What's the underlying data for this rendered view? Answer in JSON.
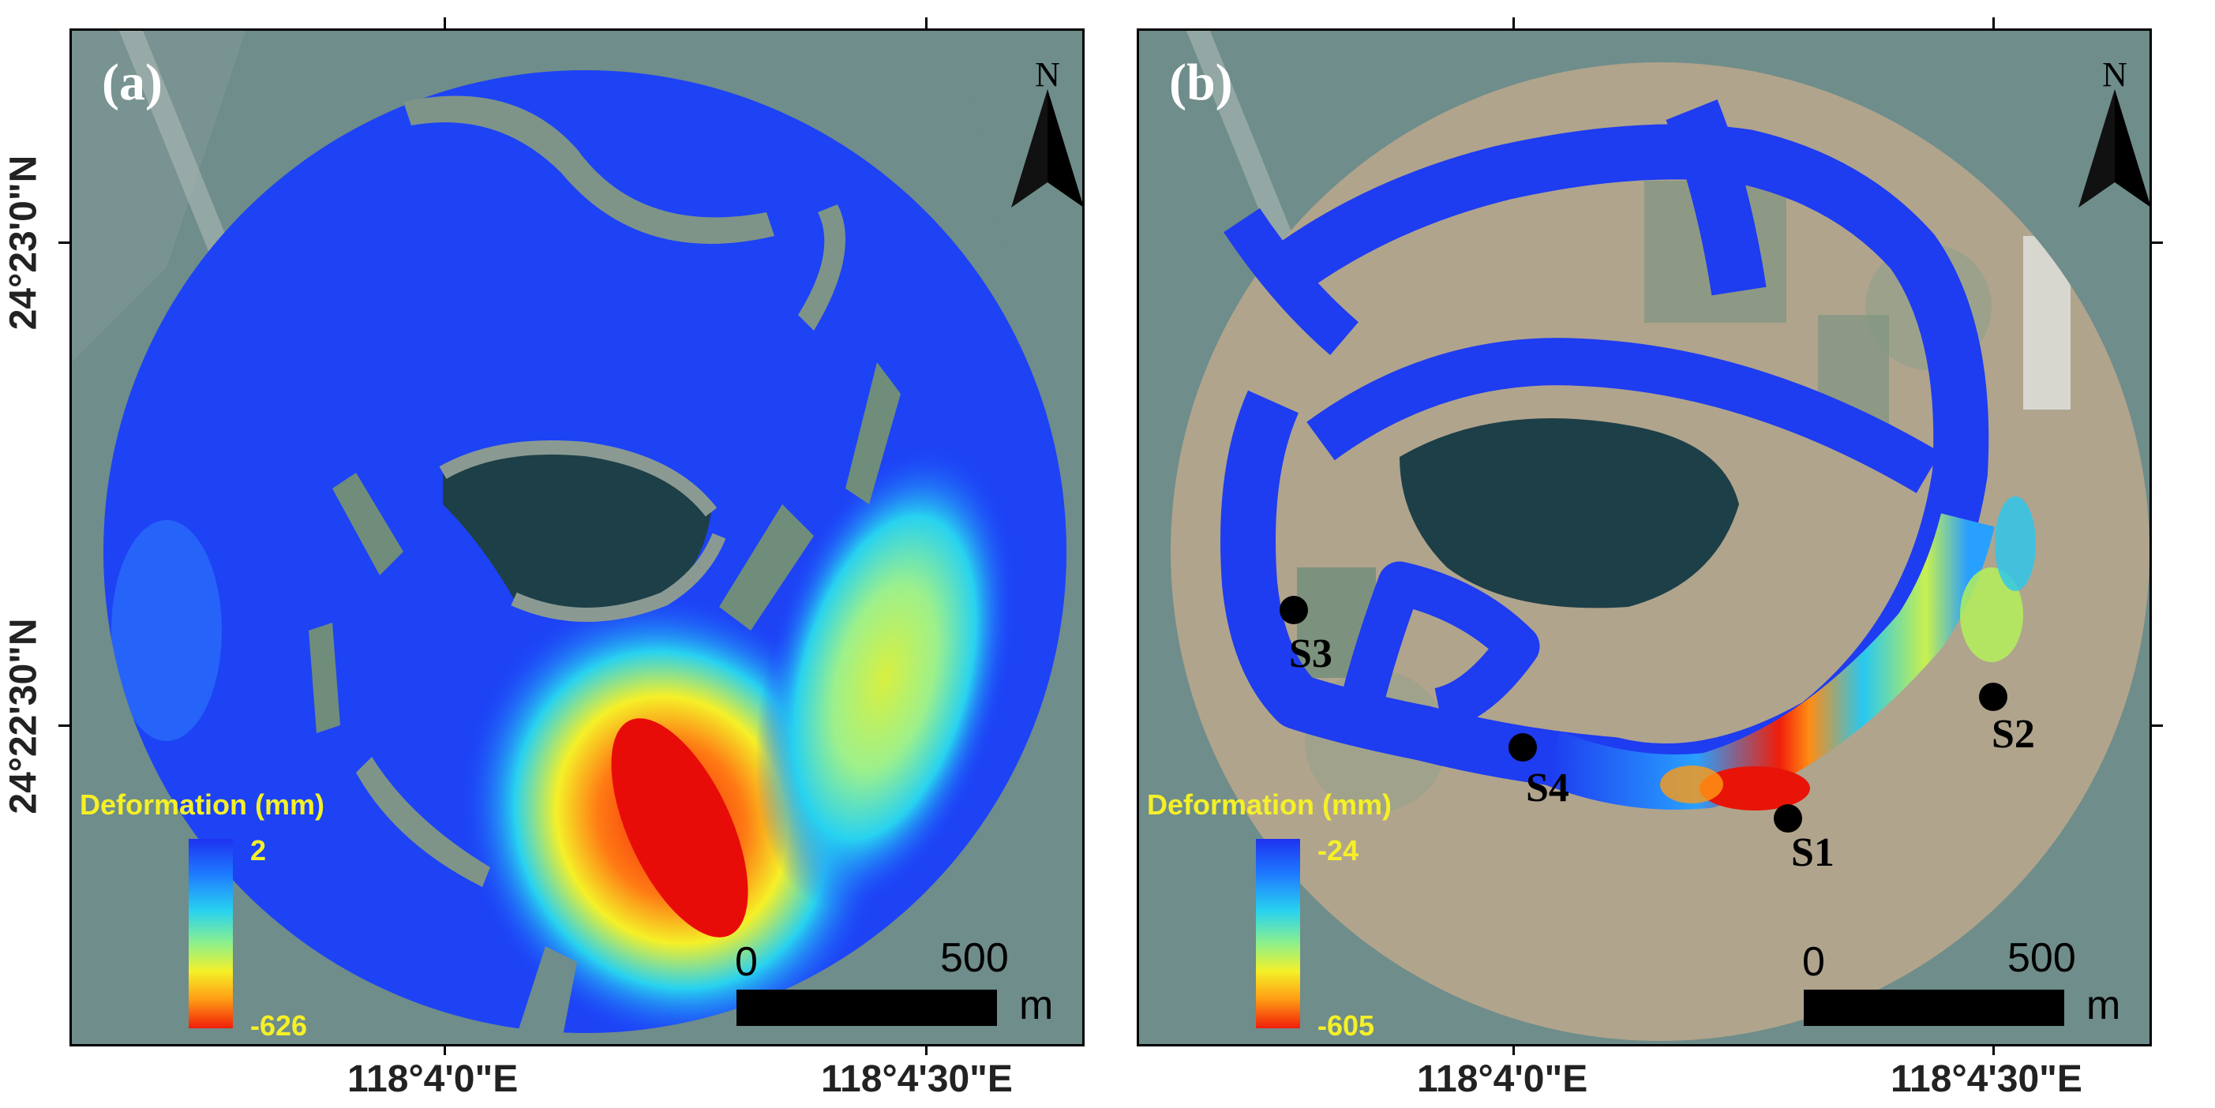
{
  "panels": {
    "a": {
      "label": "(a)",
      "north": "N",
      "legend": {
        "title": "Deformation (mm)",
        "max": "2",
        "min": "-626"
      },
      "scale": {
        "start": "0",
        "end": "500",
        "unit": "m"
      }
    },
    "b": {
      "label": "(b)",
      "north": "N",
      "legend": {
        "title": "Deformation (mm)",
        "max": "-24",
        "min": "-605"
      },
      "scale": {
        "start": "0",
        "end": "500",
        "unit": "m"
      },
      "sites": [
        {
          "id": "S1",
          "label": "S1"
        },
        {
          "id": "S2",
          "label": "S2"
        },
        {
          "id": "S3",
          "label": "S3"
        },
        {
          "id": "S4",
          "label": "S4"
        }
      ]
    }
  },
  "axes": {
    "x_labels": [
      "118°4'0\"E",
      "118°4'30\"E"
    ],
    "y_labels": [
      "24°23'0\"N",
      "24°22'30\"N"
    ]
  },
  "colors": {
    "deformation_high": "#1e32f0",
    "deformation_mid": "#f5f028",
    "deformation_low": "#f01e0a",
    "legend_text": "#f5f028",
    "water": "#6f8d8a",
    "pond": "#1d3f48",
    "land": "#a79c86"
  }
}
